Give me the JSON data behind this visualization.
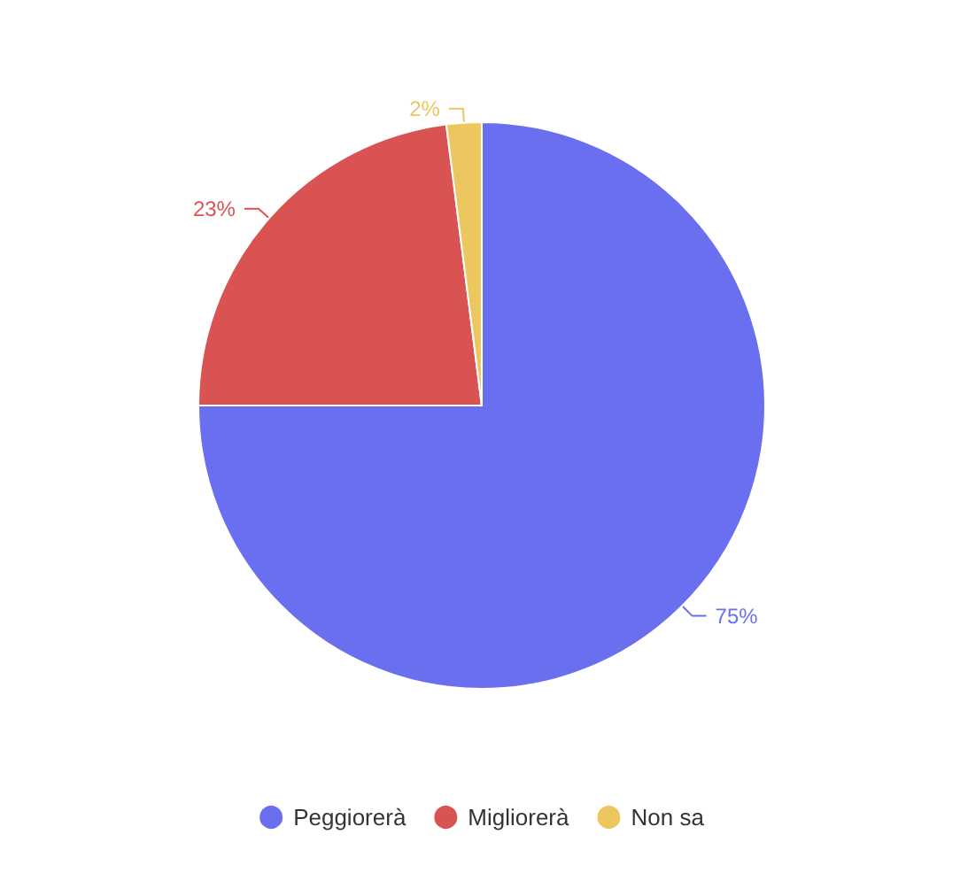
{
  "chart_data": {
    "type": "pie",
    "categories": [
      "Peggiorerà",
      "Migliorerà",
      "Non sa"
    ],
    "values": [
      75,
      23,
      2
    ],
    "colors": [
      "#6a6ff0",
      "#da5353",
      "#ecc65e"
    ],
    "value_labels": [
      "75%",
      "23%",
      "2%"
    ],
    "legend": "bottom"
  }
}
